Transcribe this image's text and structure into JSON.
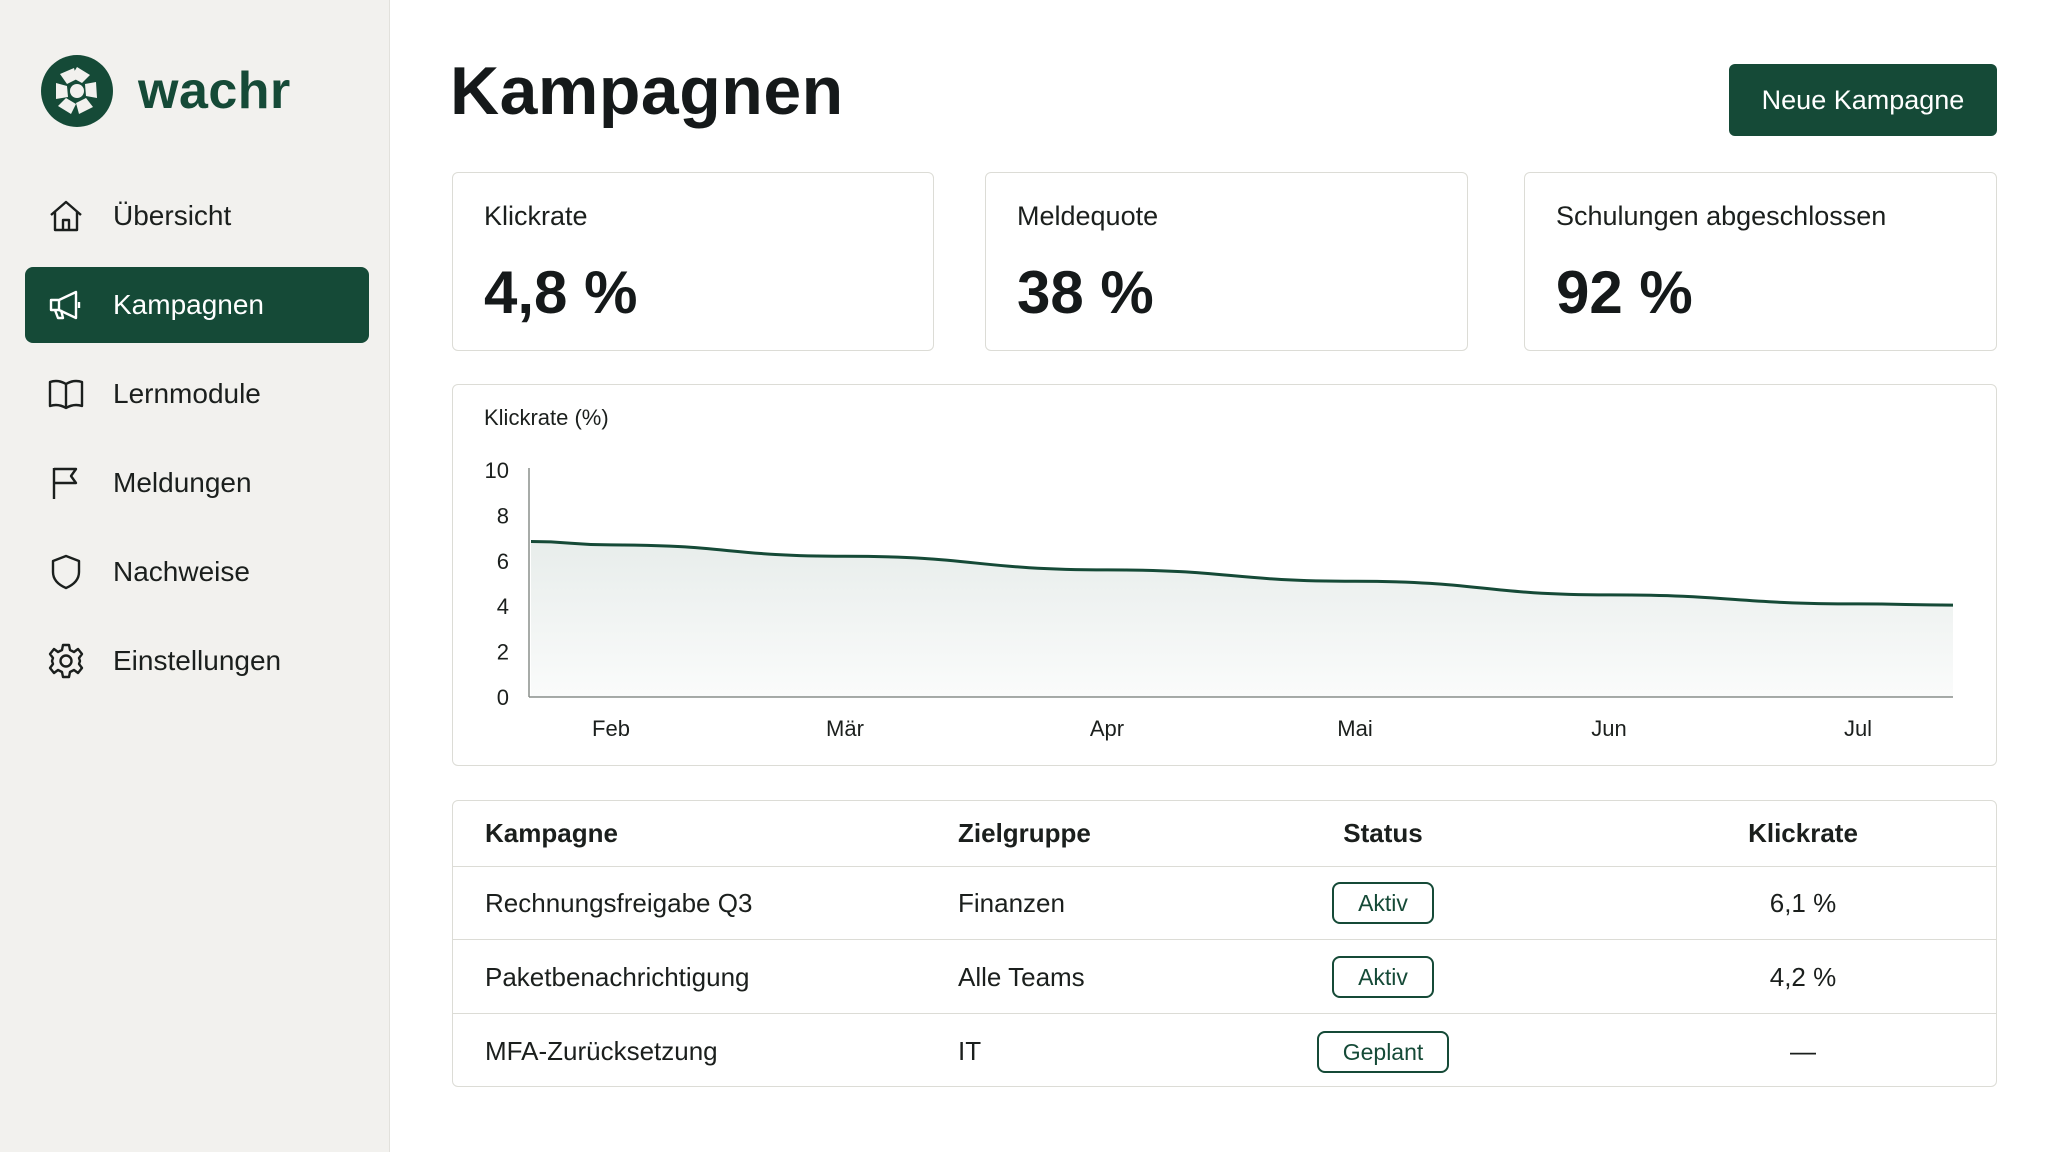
{
  "brand": {
    "name": "wachr",
    "logo": "aperture-logo-icon",
    "color": "#154a37"
  },
  "sidebar": {
    "items": [
      {
        "label": "Übersicht",
        "icon": "home-icon",
        "active": false
      },
      {
        "label": "Kampagnen",
        "icon": "megaphone-icon",
        "active": true
      },
      {
        "label": "Lernmodule",
        "icon": "book-icon",
        "active": false
      },
      {
        "label": "Meldungen",
        "icon": "flag-icon",
        "active": false
      },
      {
        "label": "Nachweise",
        "icon": "shield-icon",
        "active": false
      },
      {
        "label": "Einstellungen",
        "icon": "gear-icon",
        "active": false
      }
    ]
  },
  "header": {
    "title": "Kampagnen",
    "primary_button": "Neue Kampagne"
  },
  "kpis": [
    {
      "label": "Klickrate",
      "value": "4,8 %"
    },
    {
      "label": "Meldequote",
      "value": "38 %"
    },
    {
      "label": "Schulungen abgeschlossen",
      "value": "92 %"
    }
  ],
  "chart_data": {
    "type": "area",
    "title": "",
    "xlabel": "",
    "ylabel": "Klickrate (%)",
    "ylim": [
      0,
      10
    ],
    "yticks": [
      "10",
      "8",
      "6",
      "4",
      "2",
      "0"
    ],
    "categories": [
      "Feb",
      "Mär",
      "Apr",
      "Mai",
      "Jun",
      "Jul"
    ],
    "series": [
      {
        "values": [
          6.7,
          6.2,
          5.6,
          5.1,
          4.5,
          4.1
        ]
      }
    ],
    "grid": false,
    "line_color": "#154a37"
  },
  "table": {
    "columns": [
      "Kampagne",
      "Zielgruppe",
      "Status",
      "Klickrate"
    ],
    "rows": [
      {
        "kampagne": "Rechnungsfreigabe Q3",
        "zielgruppe": "Finanzen",
        "status": "Aktiv",
        "klickrate": "6,1 %"
      },
      {
        "kampagne": "Paketbenachrichtigung",
        "zielgruppe": "Alle Teams",
        "status": "Aktiv",
        "klickrate": "4,2 %"
      },
      {
        "kampagne": "MFA-Zurücksetzung",
        "zielgruppe": "IT",
        "status": "Geplant",
        "klickrate": "—"
      }
    ]
  }
}
